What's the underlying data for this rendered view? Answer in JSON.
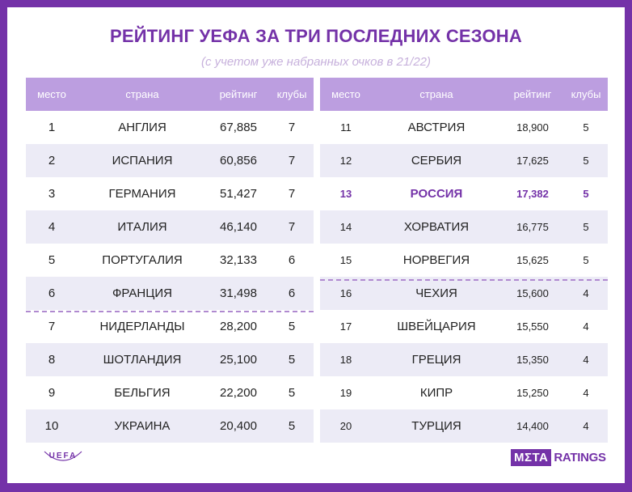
{
  "title": "РЕЙТИНГ УЕФА ЗА ТРИ ПОСЛЕДНИХ СЕЗОНА",
  "subtitle": "(с учетом уже набранных очков в 21/22)",
  "headers": {
    "place": "место",
    "country": "страна",
    "rating": "рейтинг",
    "clubs": "клубы"
  },
  "left_rows": [
    {
      "place": "1",
      "country": "АНГЛИЯ",
      "rating": "67,885",
      "clubs": "7"
    },
    {
      "place": "2",
      "country": "ИСПАНИЯ",
      "rating": "60,856",
      "clubs": "7"
    },
    {
      "place": "3",
      "country": "ГЕРМАНИЯ",
      "rating": "51,427",
      "clubs": "7"
    },
    {
      "place": "4",
      "country": "ИТАЛИЯ",
      "rating": "46,140",
      "clubs": "7"
    },
    {
      "place": "5",
      "country": "ПОРТУГАЛИЯ",
      "rating": "32,133",
      "clubs": "6"
    },
    {
      "place": "6",
      "country": "ФРАНЦИЯ",
      "rating": "31,498",
      "clubs": "6"
    },
    {
      "place": "7",
      "country": "НИДЕРЛАНДЫ",
      "rating": "28,200",
      "clubs": "5"
    },
    {
      "place": "8",
      "country": "ШОТЛАНДИЯ",
      "rating": "25,100",
      "clubs": "5"
    },
    {
      "place": "9",
      "country": "БЕЛЬГИЯ",
      "rating": "22,200",
      "clubs": "5"
    },
    {
      "place": "10",
      "country": "УКРАИНА",
      "rating": "20,400",
      "clubs": "5"
    }
  ],
  "right_rows": [
    {
      "place": "11",
      "country": "АВСТРИЯ",
      "rating": "18,900",
      "clubs": "5"
    },
    {
      "place": "12",
      "country": "СЕРБИЯ",
      "rating": "17,625",
      "clubs": "5"
    },
    {
      "place": "13",
      "country": "РОССИЯ",
      "rating": "17,382",
      "clubs": "5"
    },
    {
      "place": "14",
      "country": "ХОРВАТИЯ",
      "rating": "16,775",
      "clubs": "5"
    },
    {
      "place": "15",
      "country": "НОРВЕГИЯ",
      "rating": "15,625",
      "clubs": "5"
    },
    {
      "place": "16",
      "country": "ЧЕХИЯ",
      "rating": "15,600",
      "clubs": "4"
    },
    {
      "place": "17",
      "country": "ШВЕЙЦАРИЯ",
      "rating": "15,550",
      "clubs": "4"
    },
    {
      "place": "18",
      "country": "ГРЕЦИЯ",
      "rating": "15,350",
      "clubs": "4"
    },
    {
      "place": "19",
      "country": "КИПР",
      "rating": "15,250",
      "clubs": "4"
    },
    {
      "place": "20",
      "country": "ТУРЦИЯ",
      "rating": "14,400",
      "clubs": "4"
    }
  ],
  "highlight_color": "#7432a8",
  "logos": {
    "uefa": "UEFA",
    "meta_box": "MΣTA",
    "meta_text": "RATINGS"
  }
}
